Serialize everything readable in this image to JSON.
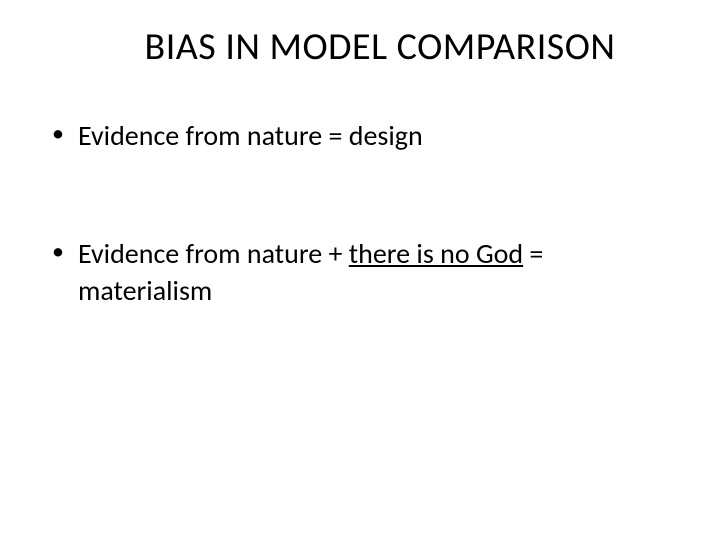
{
  "slide": {
    "title": "BIAS IN MODEL COMPARISON",
    "bullets": [
      {
        "pre": "Evidence from nature = design",
        "underlined": "",
        "post": ""
      },
      {
        "pre": "Evidence from nature + ",
        "underlined": "there is no God",
        "post": " = materialism"
      }
    ],
    "colors": {
      "background": "#ffffff",
      "text": "#000000"
    },
    "fonts": {
      "title_size": 38,
      "body_size": 28,
      "family": "Calibri"
    }
  }
}
